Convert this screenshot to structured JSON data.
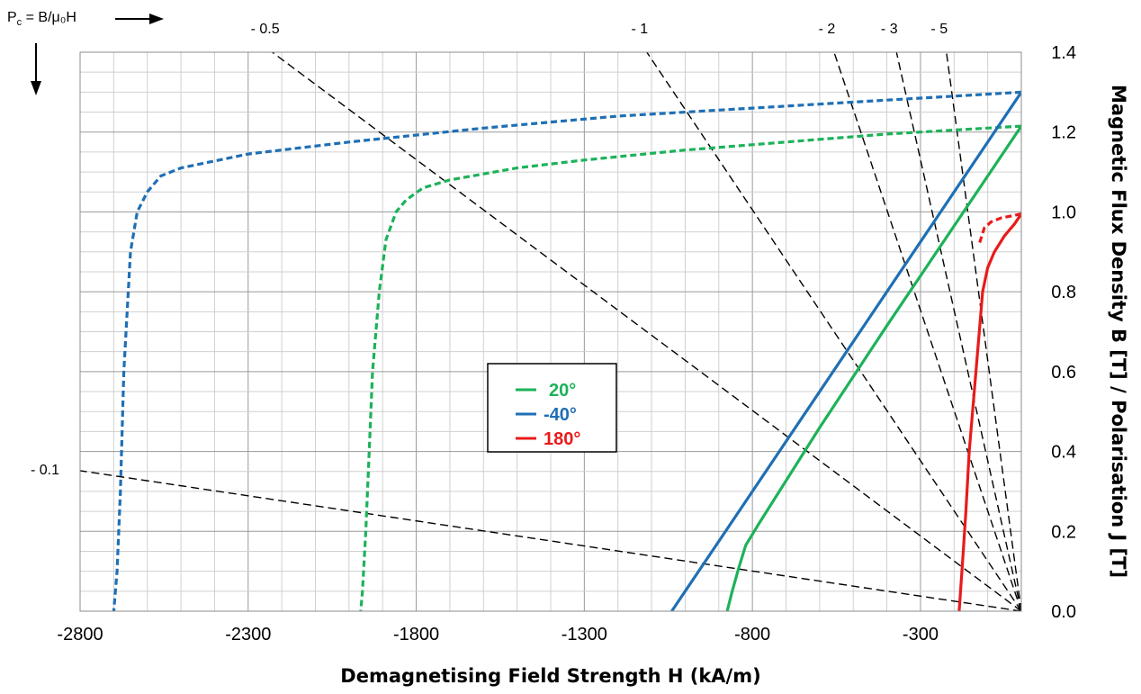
{
  "chart_data": {
    "type": "line",
    "xlabel": "Demagnetising Field Strength H (kA/m)",
    "ylabel": "Magnetic Flux Density B [T] / Polarisation J [T]",
    "xlim": [
      -2800,
      0
    ],
    "ylim": [
      0,
      1.4
    ],
    "x_ticks": [
      -2800,
      -2300,
      -1800,
      -1300,
      -800,
      -300
    ],
    "x_tick_labels": [
      "-2800",
      "-2300",
      "-1800",
      "-1300",
      "-800",
      "-300"
    ],
    "y_ticks": [
      0,
      0.2,
      0.4,
      0.6,
      0.8,
      1.0,
      1.2,
      1.4
    ],
    "y_tick_labels": [
      "0.0",
      "0.2",
      "0.4",
      "0.6",
      "0.8",
      "1.0",
      "1.2",
      "1.4"
    ],
    "grid": true,
    "y_axis_side": "right",
    "pc_annotation": {
      "prefix": "P",
      "subscript": "c",
      "suffix": " = B/μ₀H"
    },
    "load_lines": [
      {
        "label": "- 0.1",
        "pc": 0.1
      },
      {
        "label": "- 0.5",
        "pc": 0.5
      },
      {
        "label": "- 1",
        "pc": 1
      },
      {
        "label": "- 2",
        "pc": 2
      },
      {
        "label": "- 3",
        "pc": 3
      },
      {
        "label": "- 5",
        "pc": 5
      }
    ],
    "legend": {
      "position": "center",
      "entries": [
        {
          "label": "20°",
          "color": "#1DB25A"
        },
        {
          "label": "-40°",
          "color": "#1F6FB5"
        },
        {
          "label": "180°",
          "color": "#E81B1B"
        }
      ]
    },
    "series": [
      {
        "color": "#1DB25A",
        "kind": "polarisation J",
        "style": "dashed",
        "x": [
          0,
          -200,
          -400,
          -700,
          -1000,
          -1300,
          -1500,
          -1700,
          -1780,
          -1830,
          -1860,
          -1890,
          -1910,
          -1930,
          -1940,
          -1950,
          -1960,
          -1965
        ],
        "y": [
          1.215,
          1.205,
          1.195,
          1.175,
          1.155,
          1.13,
          1.11,
          1.08,
          1.06,
          1.03,
          1.0,
          0.93,
          0.8,
          0.6,
          0.4,
          0.2,
          0.05,
          0.0
        ]
      },
      {
        "color": "#1DB25A",
        "kind": "flux density B",
        "style": "solid",
        "x": [
          0,
          -200,
          -400,
          -600,
          -780,
          -820,
          -840,
          -860,
          -875
        ],
        "y": [
          1.215,
          0.965,
          0.715,
          0.46,
          0.22,
          0.165,
          0.11,
          0.05,
          0.0
        ]
      },
      {
        "color": "#1F6FB5",
        "kind": "polarisation J",
        "style": "dashed",
        "x": [
          0,
          -400,
          -800,
          -1200,
          -1600,
          -2000,
          -2300,
          -2500,
          -2560,
          -2600,
          -2630,
          -2650,
          -2670,
          -2680,
          -2690,
          -2700
        ],
        "y": [
          1.3,
          1.28,
          1.26,
          1.24,
          1.21,
          1.175,
          1.145,
          1.11,
          1.09,
          1.05,
          1.0,
          0.9,
          0.6,
          0.3,
          0.1,
          0.0
        ]
      },
      {
        "color": "#1F6FB5",
        "kind": "flux density B",
        "style": "solid",
        "x": [
          0,
          -1040
        ],
        "y": [
          1.3,
          0.0
        ]
      },
      {
        "color": "#E81B1B",
        "kind": "polarisation J",
        "style": "dashed",
        "x": [
          0,
          -30,
          -60,
          -90,
          -110,
          -125
        ],
        "y": [
          0.995,
          0.99,
          0.985,
          0.975,
          0.96,
          0.92
        ]
      },
      {
        "color": "#E81B1B",
        "kind": "flux density B",
        "style": "solid",
        "x": [
          0,
          -20,
          -50,
          -80,
          -100,
          -115,
          -125,
          -140,
          -155,
          -165,
          -175,
          -185
        ],
        "y": [
          0.995,
          0.97,
          0.94,
          0.9,
          0.86,
          0.8,
          0.7,
          0.55,
          0.4,
          0.25,
          0.12,
          0.0
        ]
      }
    ]
  }
}
